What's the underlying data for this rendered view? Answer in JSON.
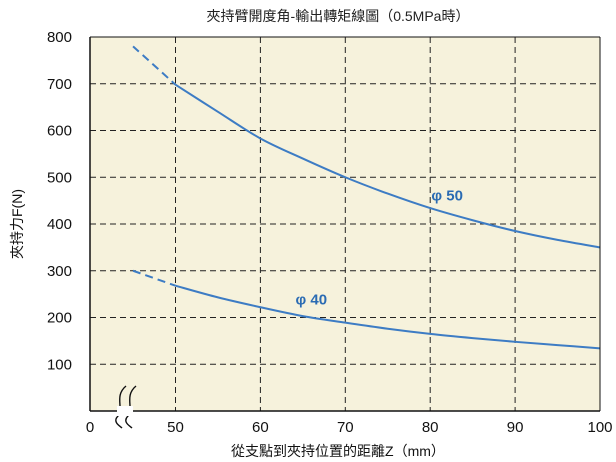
{
  "chart_data": {
    "type": "line",
    "title": "夾持臂開度角-輸出轉矩線圖（0.5MPa時）",
    "xlabel": "從支點到夾持位置的距離Z（mm）",
    "ylabel": "夾持力F(N)",
    "xlim": [
      0,
      100
    ],
    "ylim": [
      0,
      800
    ],
    "x_ticks": [
      "0",
      "50",
      "60",
      "70",
      "80",
      "90",
      "100"
    ],
    "y_ticks": [
      "100",
      "200",
      "300",
      "400",
      "500",
      "600",
      "700",
      "800"
    ],
    "axis_break": "between 0 and 50",
    "grid": true,
    "series": [
      {
        "name": "φ50",
        "color": "#3d7cc4",
        "dashed_x": [
          45,
          50
        ],
        "x": [
          45,
          50,
          55,
          60,
          65,
          70,
          75,
          80,
          85,
          90,
          95,
          100
        ],
        "y": [
          780,
          698,
          640,
          583,
          540,
          500,
          465,
          434,
          408,
          385,
          366,
          350
        ]
      },
      {
        "name": "φ40",
        "color": "#3d7cc4",
        "dashed_x": [
          45,
          50
        ],
        "x": [
          45,
          50,
          55,
          60,
          65,
          70,
          75,
          80,
          85,
          90,
          95,
          100
        ],
        "y": [
          300,
          268,
          243,
          222,
          203,
          189,
          176,
          165,
          156,
          148,
          141,
          134
        ]
      }
    ],
    "annotations": [
      {
        "text": "φ 50",
        "series": "φ50"
      },
      {
        "text": "φ 40",
        "series": "φ40"
      }
    ],
    "style": {
      "plot_background": "#f6f2dc",
      "grid_color": "#222222",
      "line_color": "#3d7cc4"
    }
  }
}
